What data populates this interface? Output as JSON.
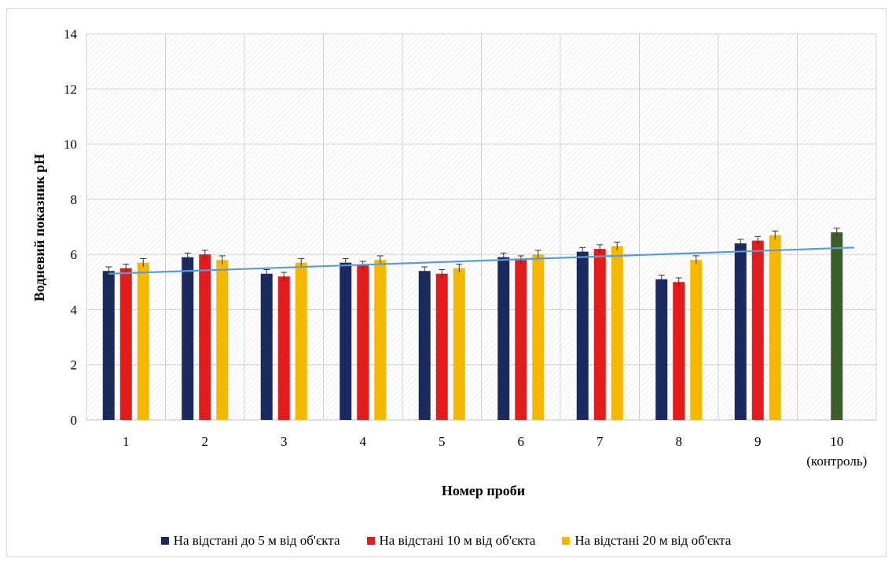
{
  "chart_data": {
    "type": "bar",
    "xlabel": "Номер проби",
    "ylabel": "Водневий показник рН",
    "ylim": [
      0,
      14
    ],
    "yticks": [
      0,
      2,
      4,
      6,
      8,
      10,
      12,
      14
    ],
    "grid": true,
    "legend_position": "bottom",
    "categories": [
      [
        "1"
      ],
      [
        "2"
      ],
      [
        "3"
      ],
      [
        "4"
      ],
      [
        "5"
      ],
      [
        "6"
      ],
      [
        "7"
      ],
      [
        "8"
      ],
      [
        "9"
      ],
      [
        "10",
        "(контроль)"
      ]
    ],
    "series": [
      {
        "name": "На відстані до 5 м від об'єкта",
        "color": "#1a2a5e",
        "values": [
          5.4,
          5.9,
          5.3,
          5.7,
          5.4,
          5.9,
          6.1,
          5.1,
          6.4,
          null
        ],
        "errors": [
          0.15,
          0.15,
          0.15,
          0.15,
          0.15,
          0.15,
          0.15,
          0.15,
          0.15,
          null
        ]
      },
      {
        "name": "На відстані 10 м від об'єкта",
        "color": "#e31b1b",
        "values": [
          5.5,
          6.0,
          5.2,
          5.6,
          5.3,
          5.8,
          6.2,
          5.0,
          6.5,
          null
        ],
        "errors": [
          0.15,
          0.15,
          0.15,
          0.15,
          0.15,
          0.15,
          0.15,
          0.15,
          0.15,
          null
        ]
      },
      {
        "name": "На відстані 20 м від об'єкта",
        "color": "#f5b800",
        "values": [
          5.7,
          5.8,
          5.7,
          5.8,
          5.5,
          6.0,
          6.3,
          5.8,
          6.7,
          null
        ],
        "errors": [
          0.15,
          0.15,
          0.15,
          0.15,
          0.15,
          0.15,
          0.15,
          0.15,
          0.15,
          null
        ]
      }
    ],
    "control": {
      "category_index": 9,
      "value": 6.8,
      "error": 0.15,
      "color": "#3b5e2b"
    },
    "trendline": {
      "color": "#5b9bd5",
      "from": 5.3,
      "to": 6.25
    }
  }
}
